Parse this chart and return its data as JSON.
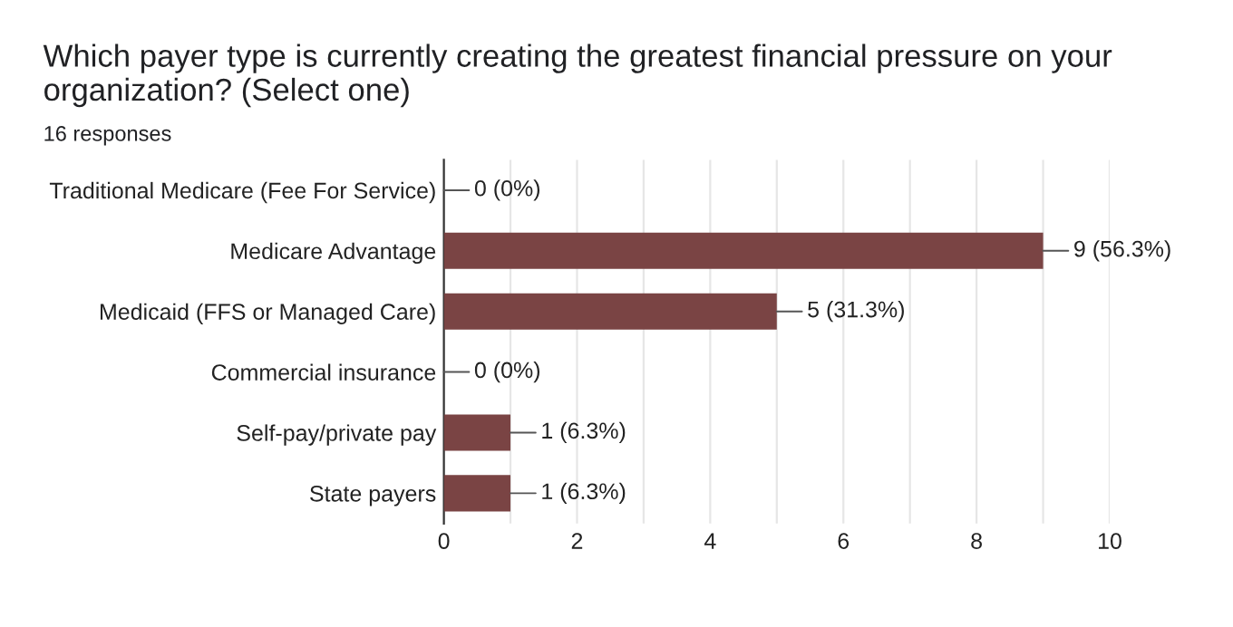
{
  "chart_data": {
    "type": "bar",
    "orientation": "horizontal",
    "title": "Which payer type is currently creating the greatest financial pressure on your organization? (Select one)",
    "subtitle": "16 responses",
    "categories": [
      "Traditional Medicare (Fee For Service)",
      "Medicare Advantage",
      "Medicaid (FFS or Managed Care)",
      "Commercial insurance",
      "Self-pay/private pay",
      "State payers"
    ],
    "values": [
      0,
      9,
      5,
      0,
      1,
      1
    ],
    "value_labels": [
      "0 (0%)",
      "9 (56.3%)",
      "5 (31.3%)",
      "0 (0%)",
      "1 (6.3%)",
      "1 (6.3%)"
    ],
    "color": "#7a4444",
    "xlim": [
      0,
      10
    ],
    "xticks": [
      0,
      {
        "value": 1,
        "label": null
      },
      2,
      {
        "value": 3,
        "label": null
      },
      4,
      {
        "value": 5,
        "label": null
      },
      6,
      {
        "value": 7,
        "label": null
      },
      8,
      {
        "value": 9,
        "label": null
      },
      10
    ],
    "grid": "x",
    "legend": false
  }
}
